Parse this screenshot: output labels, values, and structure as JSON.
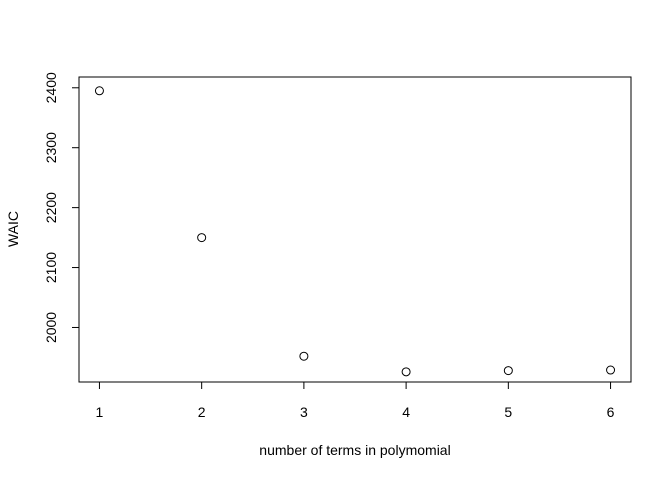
{
  "chart_data": {
    "type": "scatter",
    "title": "",
    "xlabel": "number of terms in polymomial",
    "ylabel": "WAIC",
    "x": [
      1,
      2,
      3,
      4,
      5,
      6
    ],
    "y": [
      2395,
      2150,
      1952,
      1926,
      1928,
      1929
    ],
    "xlim": [
      0.8,
      6.2
    ],
    "ylim": [
      1909,
      2418
    ],
    "xticks": [
      1,
      2,
      3,
      4,
      5,
      6
    ],
    "yticks": [
      2000,
      2100,
      2200,
      2300,
      2400
    ],
    "xtick_labels": [
      "1",
      "2",
      "3",
      "4",
      "5",
      "6"
    ],
    "ytick_labels": [
      "2000",
      "2100",
      "2200",
      "2300",
      "2400"
    ],
    "marker": "open-circle",
    "grid": false,
    "legend": "none",
    "colors": {
      "marker": "#000000",
      "axis": "#000000",
      "background": "#ffffff"
    }
  }
}
